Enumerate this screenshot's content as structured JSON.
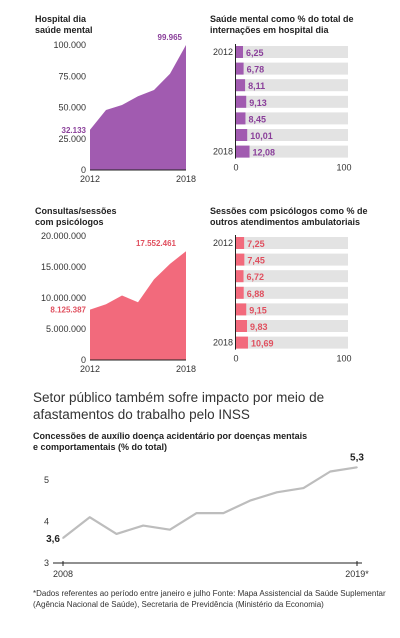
{
  "chart_data": [
    {
      "type": "area",
      "title": "Hospital dia saúde mental",
      "title_lines": [
        "Hospital dia",
        "saúde mental"
      ],
      "x": [
        2012,
        2013,
        2014,
        2015,
        2016,
        2017,
        2018
      ],
      "values": [
        32133,
        48000,
        52000,
        59000,
        64000,
        77000,
        99965
      ],
      "ylim": [
        0,
        100000
      ],
      "yticks": [
        0,
        25000,
        50000,
        75000,
        100000
      ],
      "ytick_labels": [
        "0",
        "25.000",
        "50.000",
        "75.000",
        "100.000"
      ],
      "xtick_labels": [
        "2012",
        "2018"
      ],
      "data_labels": {
        "first": "32.133",
        "last": "99.965"
      },
      "color": "#a15bb0",
      "label_color": "#8a3f9a"
    },
    {
      "type": "bar",
      "title": "Saúde mental como % do total de internações em hospital dia",
      "title_lines": [
        "Saúde mental como % do total de",
        "internações em hospital dia"
      ],
      "categories": [
        "2012",
        "2013",
        "2014",
        "2015",
        "2016",
        "2017",
        "2018"
      ],
      "row_labels": [
        "2012",
        "",
        "",
        "",
        "",
        "",
        "2018"
      ],
      "values": [
        6.25,
        6.78,
        8.11,
        9.13,
        8.45,
        10.01,
        12.08
      ],
      "value_labels": [
        "6,25",
        "6,78",
        "8,11",
        "9,13",
        "8,45",
        "10,01",
        "12,08"
      ],
      "xlim": [
        0,
        100
      ],
      "xtick_labels": [
        "0",
        "100"
      ],
      "color": "#a15bb0",
      "label_color": "#8a3f9a",
      "track_color": "#e3e3e3"
    },
    {
      "type": "area",
      "title": "Consultas/sessões com psicólogos",
      "title_lines": [
        "Consultas/sessões",
        "com psicólogos"
      ],
      "x": [
        2012,
        2013,
        2014,
        2015,
        2016,
        2017,
        2018
      ],
      "values": [
        8125387,
        9000000,
        10400000,
        9300000,
        13000000,
        15500000,
        17552461
      ],
      "ylim": [
        0,
        20000000
      ],
      "yticks": [
        0,
        5000000,
        10000000,
        15000000,
        20000000
      ],
      "ytick_labels": [
        "0",
        "5.000.000",
        "10.000.000",
        "15.000.000",
        "20.000.000"
      ],
      "xtick_labels": [
        "2012",
        "2018"
      ],
      "data_labels": {
        "first": "8.125.387",
        "last": "17.552.461"
      },
      "color": "#f26a7c",
      "label_color": "#e0505f"
    },
    {
      "type": "bar",
      "title": "Sessões com psicólogos como % de outros atendimentos ambulatoriais",
      "title_lines": [
        "Sessões com psicólogos como % de",
        "outros atendimentos ambulatoriais"
      ],
      "categories": [
        "2012",
        "2013",
        "2014",
        "2015",
        "2016",
        "2017",
        "2018"
      ],
      "row_labels": [
        "2012",
        "",
        "",
        "",
        "",
        "",
        "2018"
      ],
      "values": [
        7.25,
        7.45,
        6.72,
        6.88,
        9.15,
        9.83,
        10.69
      ],
      "value_labels": [
        "7,25",
        "7,45",
        "6,72",
        "6,88",
        "9,15",
        "9,83",
        "10,69"
      ],
      "xlim": [
        0,
        100
      ],
      "xtick_labels": [
        "0",
        "100"
      ],
      "color": "#f26a7c",
      "label_color": "#e0505f",
      "track_color": "#e3e3e3"
    },
    {
      "type": "line",
      "title": "Concessões de auxílio doença acidentário por doenças mentais e comportamentais (% do total)",
      "title_lines": [
        "Concessões de auxílio doença acidentário por doenças mentais",
        "e comportamentais (% do total)"
      ],
      "x": [
        2008,
        2009,
        2010,
        2011,
        2012,
        2013,
        2014,
        2015,
        2016,
        2017,
        2018,
        2019
      ],
      "values": [
        3.6,
        4.1,
        3.7,
        3.9,
        3.8,
        4.2,
        4.2,
        4.5,
        4.7,
        4.8,
        5.2,
        5.3
      ],
      "ylim": [
        3,
        5.5
      ],
      "yticks": [
        3,
        4,
        5
      ],
      "ytick_labels": [
        "3",
        "4",
        "5"
      ],
      "xtick_labels": [
        "2008",
        "2019*"
      ],
      "data_labels": {
        "first": "3,6",
        "last": "5,3"
      },
      "color": "#bdbdbd"
    }
  ],
  "section_heading": "Setor público também sofre impacto por meio de afastamentos do trabalho pelo INSS",
  "footnote": "*Dados referentes ao período entre janeiro e julho Fonte: Mapa Assistencial da Saúde Suplementar (Agência Nacional de Saúde), Secretaria de Previdência (Ministério da Economia)"
}
